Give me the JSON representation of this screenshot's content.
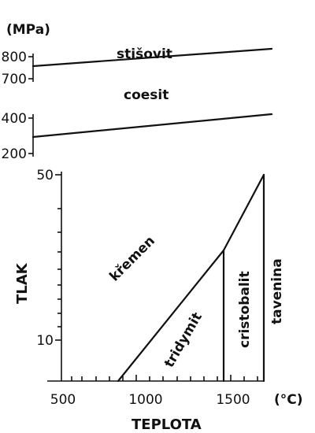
{
  "chart_data": {
    "type": "phase-diagram",
    "title": "",
    "xlabel": "TEPLOTA",
    "ylabel": "TLAK",
    "units": {
      "y": "(MPa)",
      "x": "(°C)"
    },
    "xlim": [
      500,
      1800
    ],
    "x_ticks": [
      "500",
      "1000",
      "1500"
    ],
    "panels": {
      "stisovit": {
        "y_ticks": [
          "800",
          "700"
        ],
        "ylim": [
          700,
          830
        ],
        "boundary": {
          "x": [
            500,
            1800
          ],
          "y": [
            750,
            805
          ]
        },
        "phase_labels": [
          "stišovit"
        ]
      },
      "coesit": {
        "y_ticks": [
          "400",
          "200"
        ],
        "ylim": [
          200,
          430
        ],
        "boundary": {
          "x": [
            500,
            1800
          ],
          "y": [
            300,
            410
          ]
        },
        "phase_labels": [
          "coesit"
        ]
      },
      "main": {
        "y_ticks": [
          "50",
          "10"
        ],
        "ylim": [
          0,
          50
        ],
        "boundaries": [
          {
            "name": "kremen-tridymit",
            "x": [
              867,
              1470
            ],
            "y": [
              0,
              27
            ]
          },
          {
            "name": "kremen-cristobalit",
            "x": [
              1470,
              1713
            ],
            "y": [
              27,
              48
            ]
          },
          {
            "name": "tridymit-cristobalit",
            "x": [
              1470,
              1470
            ],
            "y": [
              0,
              27
            ]
          },
          {
            "name": "cristobalit-tavenina",
            "x": [
              1713,
              1713
            ],
            "y": [
              0,
              48
            ]
          }
        ],
        "phase_labels": [
          "křemen",
          "tridymit",
          "cristobalit",
          "tavenina"
        ]
      }
    }
  }
}
